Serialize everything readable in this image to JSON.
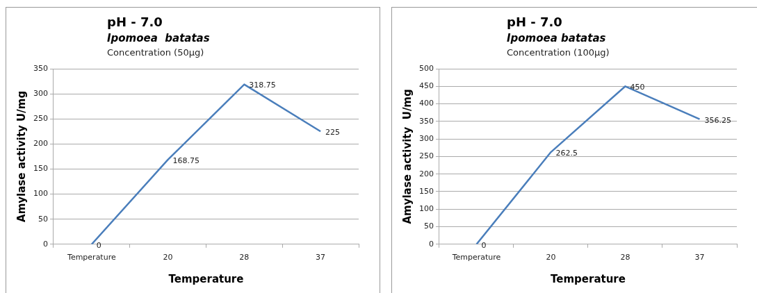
{
  "chart_data": [
    {
      "type": "line",
      "title": "pH - 7.0",
      "subtitle": "Ipomoea  batatas",
      "annotations": [
        "Concentration (50µg)"
      ],
      "xlabel": "Temperature",
      "ylabel": "Amylase activity U/mg",
      "categories": [
        "Temperature",
        "20",
        "28",
        "37"
      ],
      "series": [
        {
          "color": "#4a7ebb",
          "values": [
            0,
            168.75,
            318.75,
            225
          ]
        }
      ],
      "ylim": [
        0,
        350
      ],
      "yticks": [
        0,
        50,
        100,
        150,
        200,
        250,
        300,
        350
      ],
      "grid": "y",
      "data_labels": true,
      "legend": false
    },
    {
      "type": "line",
      "title": "pH - 7.0",
      "subtitle": "Ipomoea batatas",
      "annotations": [
        "Concentration (100µg)"
      ],
      "xlabel": "Temperature",
      "ylabel": "Amylase activity  U/mg",
      "categories": [
        "Temperature",
        "20",
        "28",
        "37"
      ],
      "series": [
        {
          "color": "#4a7ebb",
          "values": [
            0,
            262.5,
            450,
            356.25
          ]
        }
      ],
      "ylim": [
        0,
        500
      ],
      "yticks": [
        0,
        50,
        100,
        150,
        200,
        250,
        300,
        350,
        400,
        450,
        500
      ],
      "grid": "y",
      "data_labels": true,
      "legend": false
    }
  ]
}
